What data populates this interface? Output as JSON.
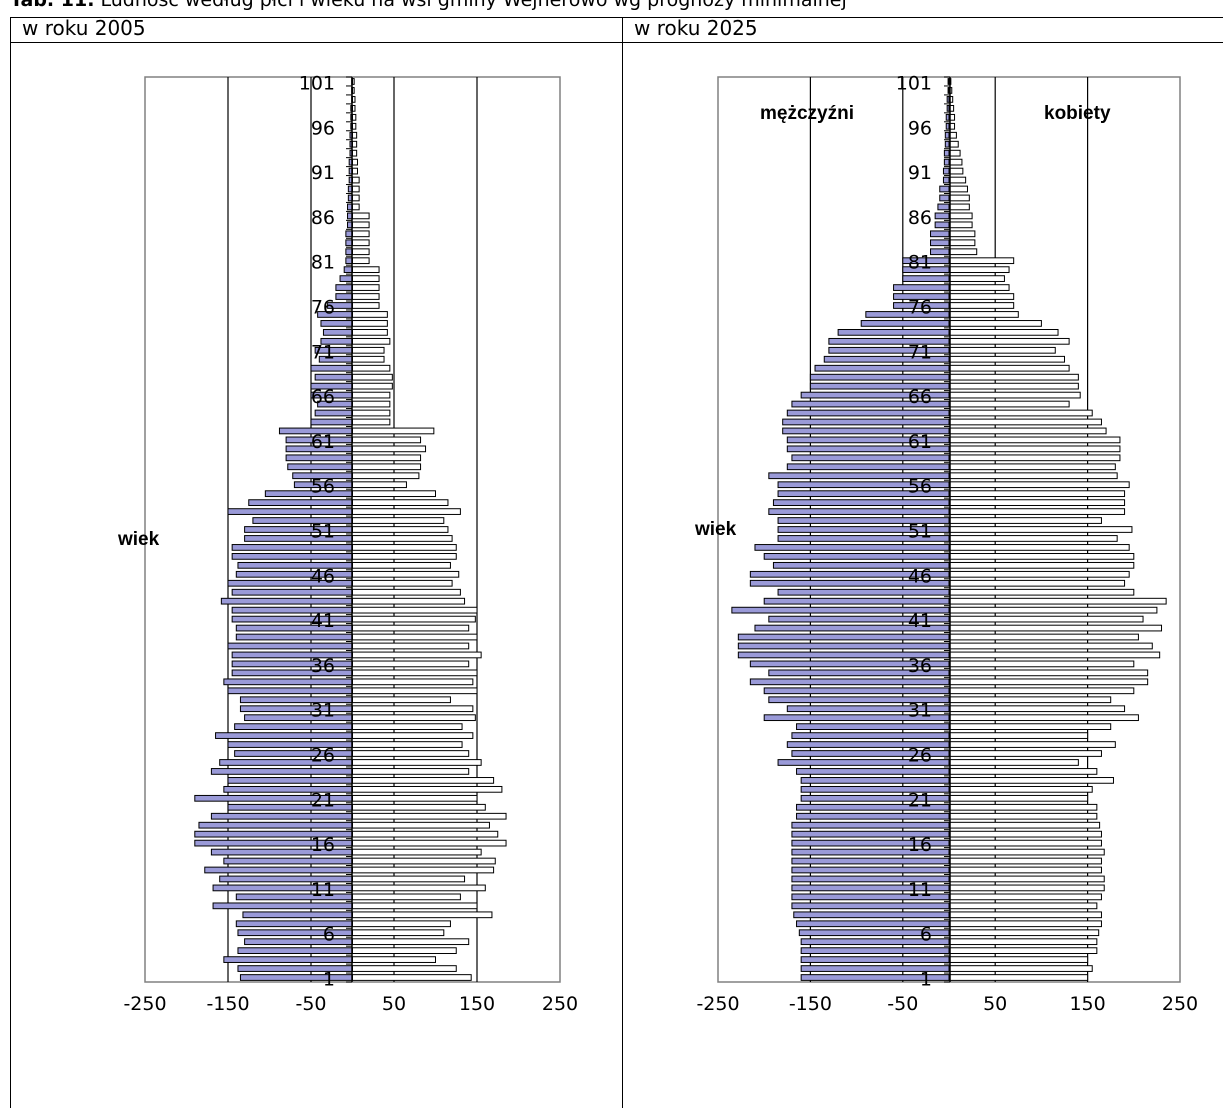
{
  "caption": {
    "label": "Tab. 11.",
    "text": "Ludność według płci i wieku na wsi gminy Wejherowo wg prognozy minimalnej"
  },
  "panels": [
    {
      "header": "w roku 2005"
    },
    {
      "header": "w roku 2025"
    }
  ],
  "colors": {
    "male_fill": "#9a9ad8",
    "female_fill": "#ffffff",
    "bar_stroke": "#000000",
    "frame": "#808080"
  },
  "chart_data": [
    {
      "type": "bar",
      "orientation": "horizontal",
      "title": "w roku 2005",
      "ylabel": "wiek",
      "xlim": [
        -250,
        250
      ],
      "xticks": [
        "-250",
        "-150",
        "-50",
        "50",
        "150",
        "250"
      ],
      "yticks": [
        "1",
        "6",
        "11",
        "16",
        "21",
        "26",
        "31",
        "36",
        "41",
        "46",
        "51",
        "56",
        "61",
        "66",
        "71",
        "76",
        "81",
        "86",
        "91",
        "96",
        "101"
      ],
      "gridlines_x": [
        -150,
        -50,
        50,
        150
      ],
      "ages_from": 0,
      "ages_to": 100,
      "series": [
        {
          "values": [
            -135,
            -138,
            -155,
            -138,
            -130,
            -138,
            -140,
            -132,
            -168,
            -140,
            -168,
            -160,
            -178,
            -155,
            -170,
            -190,
            -190,
            -185,
            -170,
            -150,
            -190,
            -155,
            -150,
            -170,
            -160,
            -142,
            -150,
            -165,
            -142,
            -130,
            -135,
            -135,
            -150,
            -155,
            -145,
            -145,
            -145,
            -150,
            -140,
            -140,
            -145,
            -145,
            -158,
            -145,
            -150,
            -140,
            -138,
            -145,
            -145,
            -130,
            -130,
            -120,
            -150,
            -125,
            -105,
            -70,
            -72,
            -78,
            -80,
            -80,
            -80,
            -88,
            -50,
            -45,
            -42,
            -50,
            -50,
            -45,
            -50,
            -40,
            -45,
            -38,
            -35,
            -38,
            -42,
            -30,
            -20,
            -20,
            -15,
            -10,
            -8,
            -8,
            -8,
            -8,
            -6,
            -6,
            -6,
            -5,
            -5,
            -4,
            -4,
            -4,
            -3,
            -3,
            -3,
            -2,
            -2,
            -2,
            -1,
            -1,
            -1
          ]
        },
        {
          "values": [
            143,
            125,
            100,
            125,
            140,
            110,
            118,
            168,
            150,
            130,
            160,
            135,
            170,
            172,
            155,
            185,
            175,
            165,
            185,
            160,
            150,
            180,
            170,
            140,
            155,
            140,
            132,
            145,
            132,
            148,
            145,
            118,
            150,
            145,
            150,
            140,
            155,
            140,
            150,
            140,
            148,
            150,
            135,
            130,
            120,
            128,
            118,
            125,
            125,
            120,
            115,
            110,
            130,
            115,
            100,
            65,
            80,
            82,
            82,
            88,
            82,
            98,
            45,
            45,
            45,
            45,
            48,
            48,
            45,
            38,
            38,
            45,
            42,
            42,
            42,
            32,
            32,
            32,
            32,
            32,
            20,
            20,
            20,
            20,
            20,
            20,
            8,
            8,
            8,
            8,
            6,
            6,
            5,
            5,
            5,
            4,
            4,
            3,
            3,
            2,
            2
          ]
        }
      ]
    },
    {
      "type": "bar",
      "orientation": "horizontal",
      "title": "w roku 2025",
      "ylabel": "wiek",
      "xlim": [
        -250,
        250
      ],
      "xticks": [
        "-250",
        "-150",
        "-50",
        "50",
        "150",
        "250"
      ],
      "yticks": [
        "1",
        "6",
        "11",
        "16",
        "21",
        "26",
        "31",
        "36",
        "41",
        "46",
        "51",
        "56",
        "61",
        "66",
        "71",
        "76",
        "81",
        "86",
        "91",
        "96",
        "101"
      ],
      "gridlines_x": [
        -150,
        -50,
        50,
        150
      ],
      "ages_from": 0,
      "ages_to": 100,
      "annotations": [
        "mężczyźni",
        "kobiety"
      ],
      "series": [
        {
          "values": [
            -160,
            -160,
            -160,
            -160,
            -160,
            -162,
            -165,
            -168,
            -170,
            -170,
            -170,
            -170,
            -170,
            -170,
            -170,
            -170,
            -170,
            -170,
            -165,
            -165,
            -160,
            -160,
            -160,
            -165,
            -185,
            -170,
            -175,
            -170,
            -165,
            -200,
            -175,
            -195,
            -200,
            -215,
            -195,
            -215,
            -228,
            -228,
            -228,
            -210,
            -195,
            -235,
            -200,
            -185,
            -215,
            -215,
            -190,
            -200,
            -210,
            -185,
            -185,
            -185,
            -195,
            -190,
            -185,
            -185,
            -195,
            -175,
            -170,
            -175,
            -175,
            -180,
            -180,
            -175,
            -170,
            -160,
            -150,
            -150,
            -145,
            -135,
            -130,
            -130,
            -120,
            -95,
            -90,
            -60,
            -60,
            -60,
            -50,
            -50,
            -50,
            -20,
            -20,
            -20,
            -15,
            -15,
            -12,
            -10,
            -10,
            -6,
            -6,
            -5,
            -5,
            -4,
            -4,
            -3,
            -3,
            -2,
            -2,
            -1,
            -1
          ]
        },
        {
          "values": [
            150,
            155,
            150,
            160,
            160,
            162,
            165,
            165,
            160,
            165,
            168,
            168,
            165,
            165,
            168,
            165,
            165,
            163,
            160,
            160,
            150,
            155,
            178,
            160,
            140,
            165,
            180,
            150,
            175,
            205,
            190,
            175,
            200,
            215,
            215,
            200,
            228,
            220,
            205,
            230,
            210,
            225,
            235,
            200,
            190,
            195,
            200,
            200,
            195,
            182,
            198,
            165,
            190,
            190,
            190,
            195,
            182,
            180,
            185,
            185,
            185,
            170,
            165,
            155,
            130,
            142,
            140,
            140,
            130,
            125,
            115,
            130,
            118,
            100,
            75,
            70,
            70,
            65,
            60,
            65,
            70,
            30,
            28,
            28,
            25,
            25,
            22,
            22,
            20,
            18,
            15,
            14,
            12,
            10,
            8,
            6,
            6,
            5,
            4,
            3,
            2
          ]
        }
      ]
    }
  ]
}
